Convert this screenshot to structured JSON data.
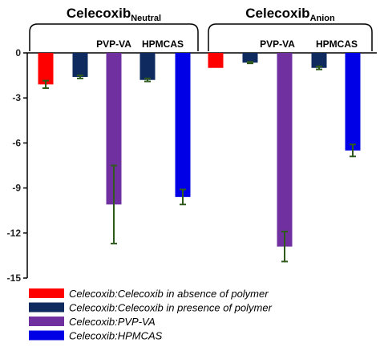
{
  "chart_data": {
    "type": "bar",
    "ylim": [
      -15,
      0
    ],
    "yticks": [
      "0",
      "-3",
      "-6",
      "-9",
      "-12",
      "-15"
    ],
    "grid": false,
    "legend_placement": "bottom",
    "groups": [
      {
        "title_main": "Celecoxib",
        "title_sub": "Neutral",
        "subgroups": [
          "PVP-VA",
          "HPMCAS"
        ]
      },
      {
        "title_main": "Celecoxib",
        "title_sub": "Anion",
        "subgroups": [
          "PVP-VA",
          "HPMCAS"
        ]
      }
    ],
    "series": [
      {
        "name": "Celecoxib:Celecoxib in absence of polymer",
        "color": "#ff0000"
      },
      {
        "name": "Celecoxib:Celecoxib in presence of polymer",
        "color": "#0e2a5e"
      },
      {
        "name": "Celecoxib:PVP-VA",
        "color": "#7030a0"
      },
      {
        "name": "Celecoxib:HPMCAS",
        "color": "#0000e6"
      }
    ],
    "bars": [
      {
        "group": 0,
        "series": 0,
        "value": -2.1,
        "error": 0.25
      },
      {
        "group": 0,
        "series": 1,
        "value": -1.6,
        "error": 0.1
      },
      {
        "group": 0,
        "series": 2,
        "value": -10.1,
        "error": 2.6
      },
      {
        "group": 0,
        "series": 1,
        "value": -1.8,
        "error": 0.1
      },
      {
        "group": 0,
        "series": 3,
        "value": -9.6,
        "error": 0.5
      },
      {
        "group": 1,
        "series": 0,
        "value": -1.0,
        "error": 0.0
      },
      {
        "group": 1,
        "series": 1,
        "value": -0.65,
        "error": 0.05
      },
      {
        "group": 1,
        "series": 2,
        "value": -12.9,
        "error": 1.0
      },
      {
        "group": 1,
        "series": 1,
        "value": -1.0,
        "error": 0.1
      },
      {
        "group": 1,
        "series": 3,
        "value": -6.5,
        "error": 0.4
      }
    ]
  }
}
